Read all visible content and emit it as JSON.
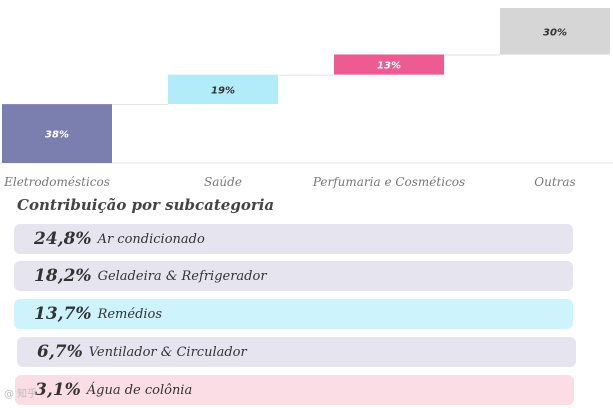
{
  "chart_data": {
    "type": "bar",
    "subtype": "waterfall",
    "categories": [
      "Eletrodomésticos",
      "Saúde",
      "Perfumaria e Cosméticos",
      "Outras"
    ],
    "values": [
      38,
      19,
      13,
      30
    ],
    "value_labels": [
      "38%",
      "19%",
      "13%",
      "30%"
    ],
    "colors": [
      "#7b7faf",
      "#b3ecf9",
      "#ee5b93",
      "#d6d6d6"
    ],
    "label_colors": [
      "#ffffff",
      "#333333",
      "#ffffff",
      "#333333"
    ],
    "ylim": [
      0,
      100
    ],
    "title": "",
    "xlabel": "",
    "ylabel": ""
  },
  "breakdown": {
    "title": "Contribuição por subcategoria",
    "items": [
      {
        "percent": "24,8%",
        "label": "Ar condicionado",
        "color": "#e6e5ef"
      },
      {
        "percent": "18,2%",
        "label": "Geladeira & Refrigerador",
        "color": "#e6e5ef"
      },
      {
        "percent": "13,7%",
        "label": "Remédios",
        "color": "#cdf3fc"
      },
      {
        "percent": "6,7%",
        "label": "Ventilador & Circulador",
        "color": "#e6e5ef"
      },
      {
        "percent": "3,1%",
        "label": "Água de colônia",
        "color": "#fbdde6"
      }
    ]
  },
  "watermark": "@ 知乎"
}
